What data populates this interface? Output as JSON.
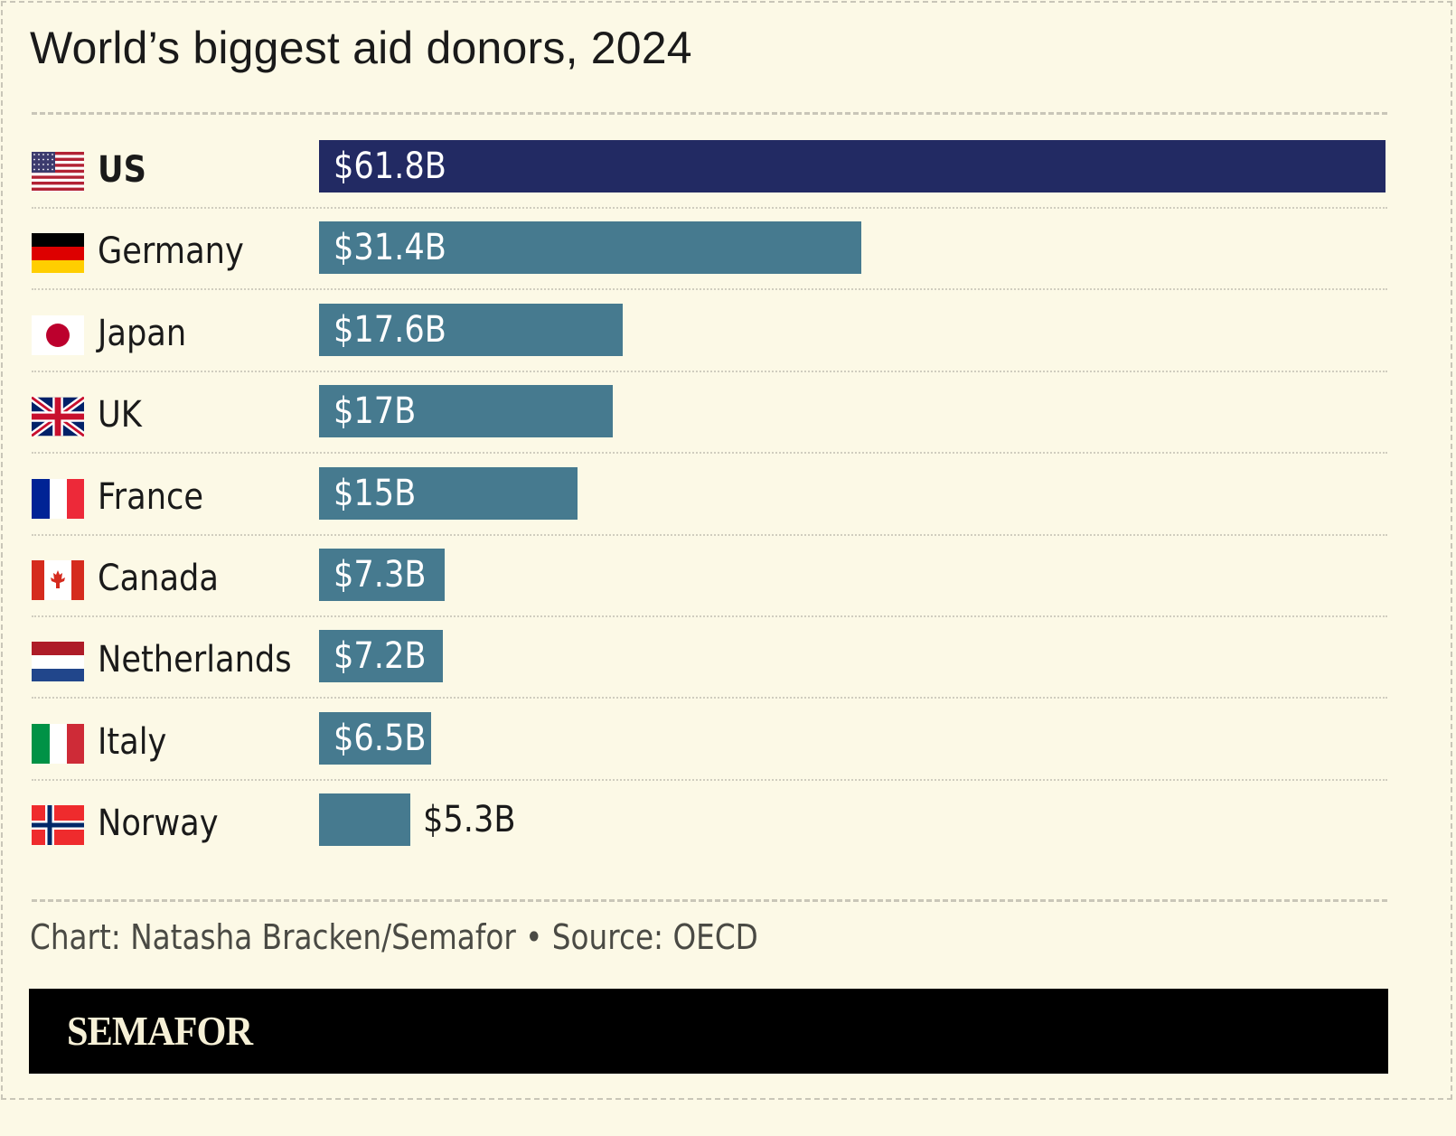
{
  "chart_data": {
    "type": "bar",
    "orientation": "horizontal",
    "title": "World’s biggest aid donors, 2024",
    "xlabel": "",
    "ylabel": "",
    "unit": "USD billions",
    "xlim": [
      0,
      61.8
    ],
    "grid": false,
    "categories": [
      "US",
      "Germany",
      "Japan",
      "UK",
      "France",
      "Canada",
      "Netherlands",
      "Italy",
      "Norway"
    ],
    "values": [
      61.8,
      31.4,
      17.6,
      17.0,
      15.0,
      7.3,
      7.2,
      6.5,
      5.3
    ],
    "labels": [
      "$61.8B",
      "$31.4B",
      "$17.6B",
      "$17B",
      "$15B",
      "$7.3B",
      "$7.2B",
      "$6.5B",
      "$5.3B"
    ],
    "highlight": "US",
    "colors": {
      "highlight": "#222a63",
      "default": "#467a8f"
    }
  },
  "rows": [
    {
      "country": "US",
      "flag": "us-flag",
      "bold": true
    },
    {
      "country": "Germany",
      "flag": "germany-flag"
    },
    {
      "country": "Japan",
      "flag": "japan-flag"
    },
    {
      "country": "UK",
      "flag": "uk-flag"
    },
    {
      "country": "France",
      "flag": "france-flag"
    },
    {
      "country": "Canada",
      "flag": "canada-flag"
    },
    {
      "country": "Netherlands",
      "flag": "netherlands-flag"
    },
    {
      "country": "Italy",
      "flag": "italy-flag"
    },
    {
      "country": "Norway",
      "flag": "norway-flag"
    }
  ],
  "footer": {
    "credit": "Chart: Natasha Bracken/Semafor • Source: OECD",
    "brand": "SEMAFOR"
  }
}
